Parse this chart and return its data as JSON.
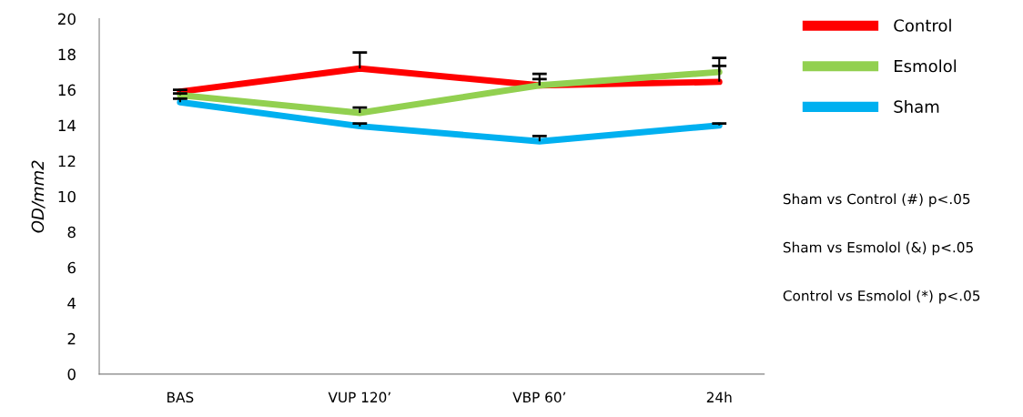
{
  "chart_data": {
    "type": "line",
    "ylabel": "OD/mm2",
    "categories": [
      "BAS",
      "VUP 120’",
      "VBP 60’",
      "24h"
    ],
    "series": [
      {
        "name": "Control",
        "color": "#ff0000",
        "values": [
          15.9,
          17.2,
          16.25,
          16.45
        ],
        "errors": [
          [
            15.9,
            16.0
          ],
          [
            17.2,
            18.1
          ],
          [
            16.25,
            16.9
          ],
          [
            16.45,
            17.35
          ]
        ]
      },
      {
        "name": "Esmolol",
        "color": "#92d050",
        "values": [
          15.7,
          14.7,
          16.25,
          17.0
        ],
        "errors": [
          [
            15.7,
            15.8
          ],
          [
            14.7,
            15.0
          ],
          [
            16.25,
            16.6
          ],
          [
            17.0,
            17.8
          ]
        ]
      },
      {
        "name": "Sham",
        "color": "#00b0f0",
        "values": [
          15.3,
          13.95,
          13.1,
          14.0
        ],
        "errors": [
          [
            15.3,
            15.5
          ],
          [
            13.95,
            14.1
          ],
          [
            13.1,
            13.4
          ],
          [
            14.0,
            14.1
          ]
        ]
      }
    ],
    "ylim": [
      0,
      20
    ],
    "yticks": [
      0,
      2,
      4,
      6,
      8,
      10,
      12,
      14,
      16,
      18,
      20
    ],
    "grid": false,
    "legend": "right",
    "marker": "none",
    "line_style": "solid",
    "annotations": [
      "Sham vs Control (#) p<.05",
      "Sham vs Esmolol (&) p<.05",
      "Control vs Esmolol (*) p<.05"
    ]
  }
}
